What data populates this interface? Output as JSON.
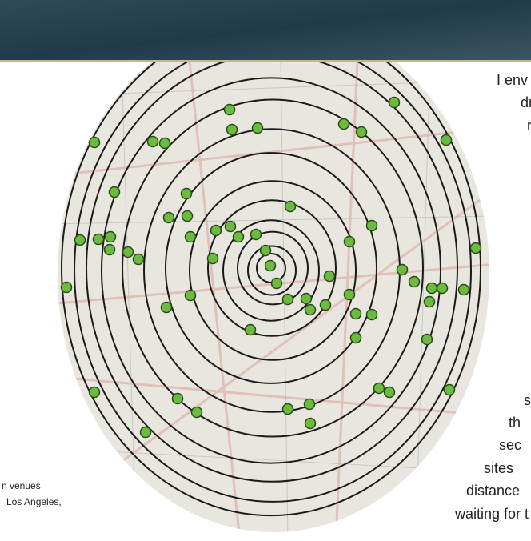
{
  "article": {
    "body_lines": [
      "I env",
      "dr",
      "r",
      "s",
      "th",
      "sec",
      "sites",
      "distance",
      "waiting for t"
    ],
    "caption_lines": [
      "n venues",
      "Los Angeles,"
    ]
  }
}
